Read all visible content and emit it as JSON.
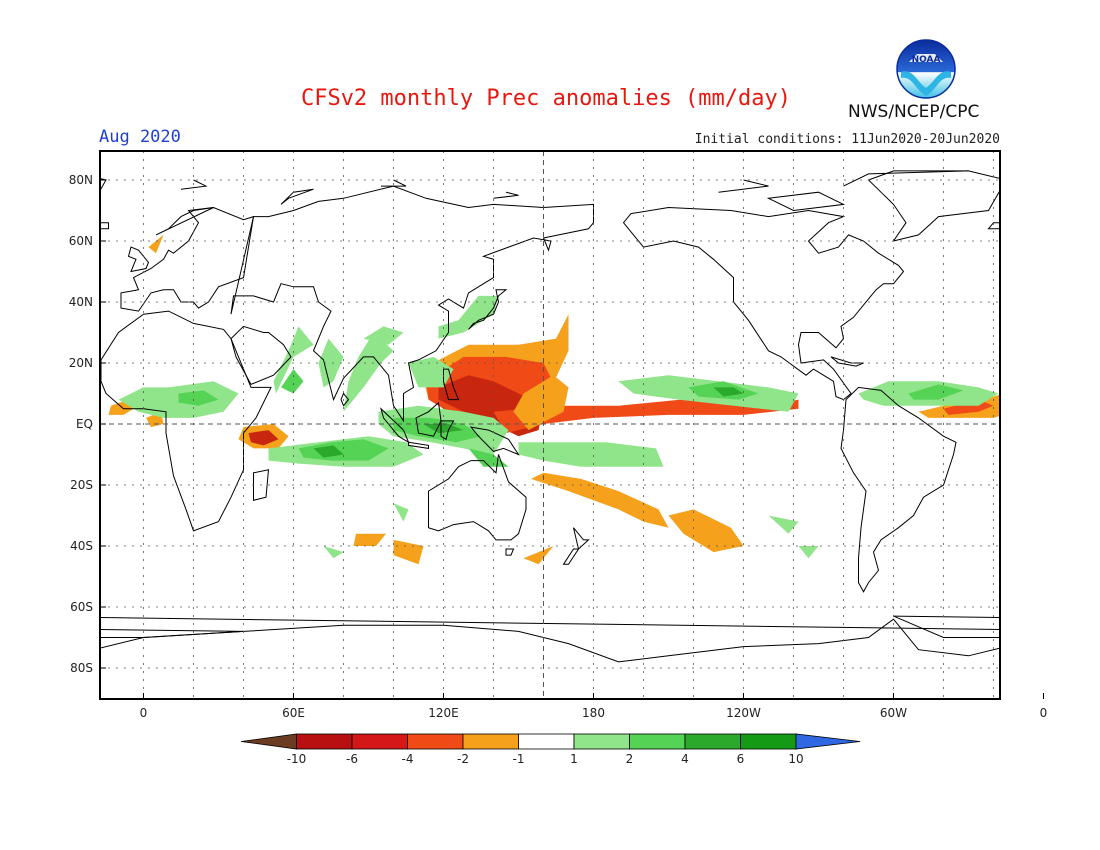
{
  "header": {
    "title": "CFSv2 monthly Prec anomalies (mm/day)",
    "valid_month": "Aug 2020",
    "initial_conditions": "Initial conditions: 11Jun2020-20Jun2020",
    "org": "NWS/NCEP/CPC",
    "logo_text": "NOAA"
  },
  "map": {
    "lat_labels": [
      "80N",
      "60N",
      "40N",
      "20N",
      "EQ",
      "20S",
      "40S",
      "60S",
      "80S"
    ],
    "lon_labels": [
      "0",
      "60E",
      "120E",
      "180",
      "120W",
      "60W",
      "0"
    ]
  },
  "colorbar": {
    "labels": [
      "-10",
      "-6",
      "-4",
      "-2",
      "-1",
      "1",
      "2",
      "4",
      "6",
      "10"
    ],
    "colors": [
      "#6b3b22",
      "#b81010",
      "#d41818",
      "#f04a17",
      "#f5a11c",
      "#ffffff",
      "#90e58a",
      "#55d355",
      "#2ba92b",
      "#149a14",
      "#2f68e2"
    ]
  },
  "colors": {
    "dry_light": "#f5a11c",
    "dry_mid": "#f04a17",
    "dry_strong": "#c8260f",
    "wet_light": "#90e58a",
    "wet_mid": "#55d355",
    "wet_strong": "#2ba92b"
  }
}
